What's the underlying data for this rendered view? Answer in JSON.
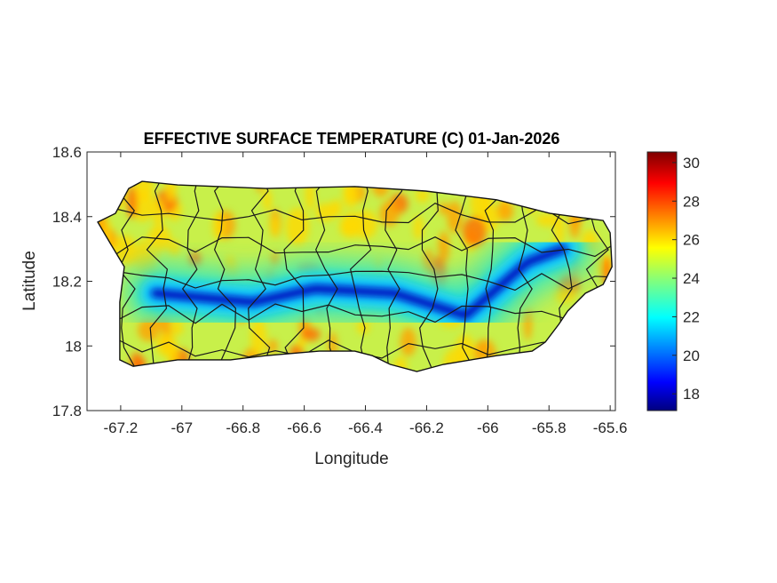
{
  "chart_data": {
    "type": "heatmap",
    "title": "EFFECTIVE SURFACE TEMPERATURE (C) 01-Jan-2026",
    "xlabel": "Longitude",
    "ylabel": "Latitude",
    "xlim": [
      -67.31,
      -65.583
    ],
    "ylim": [
      17.8,
      18.6
    ],
    "xticks": [
      -67.2,
      -67,
      -66.8,
      -66.6,
      -66.4,
      -66.2,
      -66,
      -65.8,
      -65.6
    ],
    "xtick_labels": [
      "-67.2",
      "-67",
      "-66.8",
      "-66.6",
      "-66.4",
      "-66.2",
      "-66",
      "-65.8",
      "-65.6"
    ],
    "yticks": [
      17.8,
      18,
      18.2,
      18.4,
      18.6
    ],
    "ytick_labels": [
      "17.8",
      "18",
      "18.2",
      "18.4",
      "18.6"
    ],
    "colorbar": {
      "colormap": "jet",
      "clim": [
        17.13,
        30.55
      ],
      "ticks": [
        18,
        20,
        22,
        24,
        26,
        28,
        30
      ],
      "tick_labels": [
        "18",
        "20",
        "22",
        "24",
        "26",
        "28",
        "30"
      ]
    },
    "island_outline": [
      [
        -67.275,
        18.383
      ],
      [
        -67.217,
        18.41
      ],
      [
        -67.174,
        18.487
      ],
      [
        -67.13,
        18.509
      ],
      [
        -67.014,
        18.498
      ],
      [
        -66.725,
        18.487
      ],
      [
        -66.435,
        18.493
      ],
      [
        -66.203,
        18.479
      ],
      [
        -65.971,
        18.452
      ],
      [
        -65.797,
        18.41
      ],
      [
        -65.623,
        18.388
      ],
      [
        -65.6,
        18.35
      ],
      [
        -65.594,
        18.245
      ],
      [
        -65.623,
        18.19
      ],
      [
        -65.681,
        18.163
      ],
      [
        -65.739,
        18.108
      ],
      [
        -65.768,
        18.067
      ],
      [
        -65.812,
        18.012
      ],
      [
        -65.855,
        17.984
      ],
      [
        -65.971,
        17.97
      ],
      [
        -66.145,
        17.943
      ],
      [
        -66.232,
        17.921
      ],
      [
        -66.319,
        17.943
      ],
      [
        -66.377,
        17.97
      ],
      [
        -66.435,
        17.984
      ],
      [
        -66.551,
        17.984
      ],
      [
        -66.725,
        17.97
      ],
      [
        -66.841,
        17.957
      ],
      [
        -67.014,
        17.957
      ],
      [
        -67.159,
        17.937
      ],
      [
        -67.203,
        17.957
      ],
      [
        -67.203,
        18.025
      ],
      [
        -67.203,
        18.135
      ],
      [
        -67.188,
        18.245
      ],
      [
        -67.232,
        18.314
      ]
    ],
    "cold_ridge": [
      [
        -67.087,
        18.163
      ],
      [
        -66.768,
        18.135
      ],
      [
        -66.565,
        18.177
      ],
      [
        -66.304,
        18.163
      ],
      [
        -66.072,
        18.094
      ],
      [
        -65.87,
        18.259
      ],
      [
        -65.754,
        18.3
      ]
    ],
    "ridge_min_temp": 17.5,
    "typical_lowland_temp": 25.5
  }
}
